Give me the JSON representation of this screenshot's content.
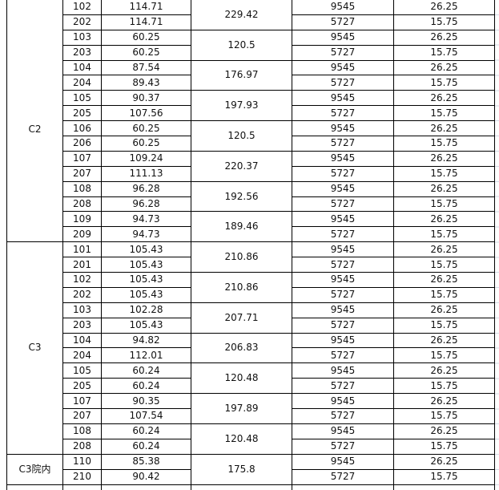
{
  "table": {
    "groups": [
      {
        "building": "C2",
        "pairs": [
          {
            "rows": [
              [
                "102",
                "114.71",
                "9545",
                "26.25"
              ],
              [
                "202",
                "114.71",
                "5727",
                "15.75"
              ]
            ],
            "total": "229.42"
          },
          {
            "rows": [
              [
                "103",
                "60.25",
                "9545",
                "26.25"
              ],
              [
                "203",
                "60.25",
                "5727",
                "15.75"
              ]
            ],
            "total": "120.5"
          },
          {
            "rows": [
              [
                "104",
                "87.54",
                "9545",
                "26.25"
              ],
              [
                "204",
                "89.43",
                "5727",
                "15.75"
              ]
            ],
            "total": "176.97"
          },
          {
            "rows": [
              [
                "105",
                "90.37",
                "9545",
                "26.25"
              ],
              [
                "205",
                "107.56",
                "5727",
                "15.75"
              ]
            ],
            "total": "197.93"
          },
          {
            "rows": [
              [
                "106",
                "60.25",
                "9545",
                "26.25"
              ],
              [
                "206",
                "60.25",
                "5727",
                "15.75"
              ]
            ],
            "total": "120.5"
          },
          {
            "rows": [
              [
                "107",
                "109.24",
                "9545",
                "26.25"
              ],
              [
                "207",
                "111.13",
                "5727",
                "15.75"
              ]
            ],
            "total": "220.37"
          },
          {
            "rows": [
              [
                "108",
                "96.28",
                "9545",
                "26.25"
              ],
              [
                "208",
                "96.28",
                "5727",
                "15.75"
              ]
            ],
            "total": "192.56"
          },
          {
            "rows": [
              [
                "109",
                "94.73",
                "9545",
                "26.25"
              ],
              [
                "209",
                "94.73",
                "5727",
                "15.75"
              ]
            ],
            "total": "189.46"
          }
        ]
      },
      {
        "building": "C3",
        "pairs": [
          {
            "rows": [
              [
                "101",
                "105.43",
                "9545",
                "26.25"
              ],
              [
                "201",
                "105.43",
                "5727",
                "15.75"
              ]
            ],
            "total": "210.86"
          },
          {
            "rows": [
              [
                "102",
                "105.43",
                "9545",
                "26.25"
              ],
              [
                "202",
                "105.43",
                "5727",
                "15.75"
              ]
            ],
            "total": "210.86"
          },
          {
            "rows": [
              [
                "103",
                "102.28",
                "9545",
                "26.25"
              ],
              [
                "203",
                "105.43",
                "5727",
                "15.75"
              ]
            ],
            "total": "207.71"
          },
          {
            "rows": [
              [
                "104",
                "94.82",
                "9545",
                "26.25"
              ],
              [
                "204",
                "112.01",
                "5727",
                "15.75"
              ]
            ],
            "total": "206.83"
          },
          {
            "rows": [
              [
                "105",
                "60.24",
                "9545",
                "26.25"
              ],
              [
                "205",
                "60.24",
                "5727",
                "15.75"
              ]
            ],
            "total": "120.48"
          },
          {
            "rows": [
              [
                "107",
                "90.35",
                "9545",
                "26.25"
              ],
              [
                "207",
                "107.54",
                "5727",
                "15.75"
              ]
            ],
            "total": "197.89"
          },
          {
            "rows": [
              [
                "108",
                "60.24",
                "9545",
                "26.25"
              ],
              [
                "208",
                "60.24",
                "5727",
                "15.75"
              ]
            ],
            "total": "120.48"
          }
        ]
      },
      {
        "building": "C3院内",
        "pairs": [
          {
            "rows": [
              [
                "110",
                "85.38",
                "9545",
                "26.25"
              ],
              [
                "210",
                "90.42",
                "5727",
                "15.75"
              ]
            ],
            "total": "175.8"
          }
        ]
      }
    ]
  }
}
